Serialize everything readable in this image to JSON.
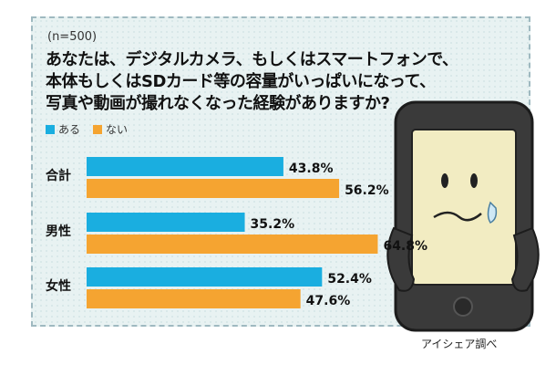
{
  "note": "(n=500)",
  "question_lines": [
    "あなたは、デジタルカメラ、もしくはスマートフォンで、",
    "本体もしくはSDカード等の容量がいっぱいになって、",
    "写真や動画が撮れなくなった経験がありますか?"
  ],
  "credit": "アイシェア調べ",
  "colors": {
    "yes": "#1aaee0",
    "no": "#f5a431"
  },
  "chart_data": {
    "type": "bar",
    "orientation": "horizontal",
    "categories": [
      "合計",
      "男性",
      "女性"
    ],
    "series": [
      {
        "name": "ある",
        "values": [
          43.8,
          35.2,
          52.4
        ]
      },
      {
        "name": "ない",
        "values": [
          56.2,
          64.8,
          47.6
        ]
      }
    ],
    "value_labels": [
      [
        "43.8%",
        "35.2%",
        "52.4%"
      ],
      [
        "56.2%",
        "64.8%",
        "47.6%"
      ]
    ],
    "xlim": [
      0,
      100
    ],
    "legend": "top-left",
    "grid": false
  }
}
